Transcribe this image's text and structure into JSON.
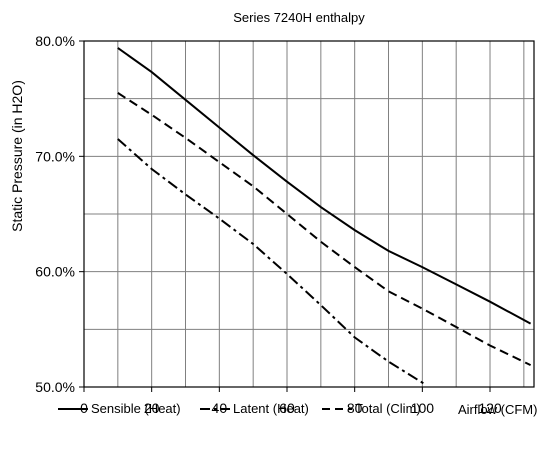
{
  "chart_data": {
    "type": "line",
    "title": "Series 7240H enthalpy",
    "ylabel": "Static Pressure (in H2O)",
    "xlabel": "Airflow (CFM)",
    "xlim": [
      0,
      133
    ],
    "ylim": [
      50,
      80
    ],
    "x_ticks": [
      "0",
      "20",
      "40",
      "60",
      "80",
      "100",
      "120"
    ],
    "y_ticks": [
      "50.0%",
      "60.0%",
      "70.0%",
      "80.0%"
    ],
    "grid": true,
    "legend_position": "bottom",
    "series": [
      {
        "name": "Sensible (Heat)",
        "style": "solid",
        "color": "#000000",
        "points": [
          [
            10,
            79.4
          ],
          [
            20,
            77.3
          ],
          [
            30,
            74.9
          ],
          [
            40,
            72.5
          ],
          [
            50,
            70.1
          ],
          [
            60,
            67.8
          ],
          [
            70,
            65.6
          ],
          [
            80,
            63.6
          ],
          [
            90,
            61.8
          ],
          [
            100,
            60.4
          ],
          [
            110,
            58.9
          ],
          [
            120,
            57.4
          ],
          [
            132,
            55.5
          ]
        ]
      },
      {
        "name": "Latent (Heat)",
        "style": "dash-dot",
        "color": "#000000",
        "points": [
          [
            10,
            71.5
          ],
          [
            20,
            68.9
          ],
          [
            30,
            66.7
          ],
          [
            40,
            64.6
          ],
          [
            50,
            62.4
          ],
          [
            60,
            59.8
          ],
          [
            70,
            57.1
          ],
          [
            80,
            54.3
          ],
          [
            90,
            52.2
          ],
          [
            101,
            50.2
          ]
        ]
      },
      {
        "name": "Total (Clim)",
        "style": "dashed",
        "color": "#000000",
        "points": [
          [
            10,
            75.5
          ],
          [
            20,
            73.6
          ],
          [
            30,
            71.6
          ],
          [
            40,
            69.5
          ],
          [
            50,
            67.4
          ],
          [
            60,
            65.0
          ],
          [
            70,
            62.6
          ],
          [
            80,
            60.4
          ],
          [
            90,
            58.3
          ],
          [
            100,
            56.8
          ],
          [
            110,
            55.2
          ],
          [
            120,
            53.6
          ],
          [
            132,
            51.9
          ]
        ]
      }
    ]
  }
}
